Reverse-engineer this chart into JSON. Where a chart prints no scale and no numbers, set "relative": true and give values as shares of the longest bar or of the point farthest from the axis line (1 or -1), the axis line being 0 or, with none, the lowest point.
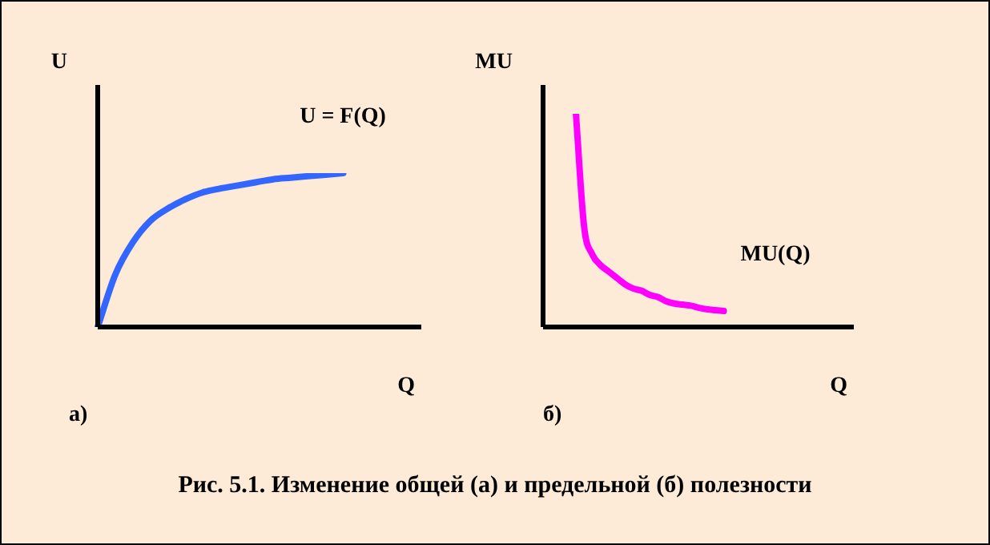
{
  "chart_data": [
    {
      "type": "line",
      "relative": true,
      "xlabel": "Q",
      "ylabel": "U",
      "annotations": [
        "а)",
        "Рис. 5.1. Изменение общей (а) и предельной (б) полезности"
      ],
      "categories": [
        null,
        null,
        null,
        null,
        null,
        null,
        null,
        null,
        null,
        null,
        null,
        null,
        null,
        null,
        null,
        null,
        null,
        null,
        null,
        null
      ],
      "series": [
        {
          "name": "U = F(Q)",
          "color": "#3366ff",
          "values": [
            0,
            0.34,
            0.55,
            0.69,
            0.77,
            0.83,
            0.875,
            0.9,
            0.92,
            0.94,
            0.96,
            0.97,
            0.98,
            0.99,
            1,
            null,
            null,
            null,
            null,
            null
          ]
        }
      ]
    },
    {
      "type": "line",
      "relative": true,
      "xlabel": "Q",
      "ylabel": "MU",
      "annotations": [
        "б)"
      ],
      "categories": [
        null,
        null,
        null,
        null,
        null,
        null,
        null,
        null,
        null,
        null,
        null,
        null,
        null,
        null,
        null,
        null,
        null,
        null,
        null,
        null,
        null,
        null,
        null,
        null,
        null,
        null,
        null,
        null,
        null,
        null,
        null,
        null,
        null,
        null,
        null,
        null,
        null,
        null,
        null,
        null
      ],
      "series": [
        {
          "name": "MU(Q)",
          "color": "#ff00ff",
          "values": [
            null,
            null,
            null,
            null,
            1,
            0.47,
            0.34,
            0.29,
            0.26,
            0.23,
            0.2,
            0.18,
            0.17,
            0.15,
            0.14,
            0.12,
            0.11,
            0.105,
            0.1,
            0.09,
            0.083,
            0.079,
            0.075,
            null,
            null,
            null,
            null,
            null,
            null,
            null,
            null,
            null,
            null,
            null,
            null,
            null,
            null,
            null,
            null,
            null
          ]
        }
      ]
    }
  ]
}
